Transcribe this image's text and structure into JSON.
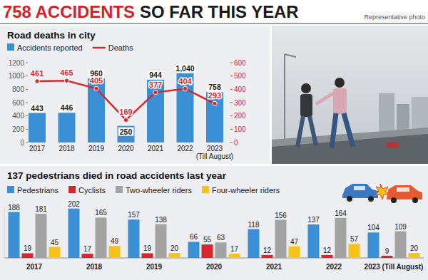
{
  "header": {
    "title": [
      "758 ACCIDENTS",
      "SO FAR THIS YEAR"
    ],
    "photo_credit": "Representative photo"
  },
  "chart_data": [
    {
      "type": "bar",
      "title": "Road deaths in city",
      "categories": [
        "2017",
        "2018",
        "2019",
        "2020",
        "2021",
        "2022",
        "2023 (Till August)"
      ],
      "series": [
        {
          "name": "Accidents reported",
          "type": "bar",
          "color": "#3b8fd4",
          "values": [
            443,
            446,
            960,
            250,
            944,
            1040,
            758
          ],
          "value_labels": [
            "443",
            "446",
            "960",
            "250",
            "944",
            "1,040",
            "758"
          ]
        },
        {
          "name": "Deaths",
          "type": "line",
          "axis": "y2",
          "color": "#d7282f",
          "marker": "circle",
          "values": [
            461,
            465,
            405,
            169,
            377,
            404,
            293
          ]
        }
      ],
      "ylim": [
        0,
        1200
      ],
      "yticks": [
        0,
        200,
        400,
        600,
        800,
        1000,
        1200
      ],
      "y2lim": [
        0,
        600
      ],
      "y2ticks": [
        0,
        100,
        200,
        300,
        400,
        500,
        600
      ],
      "grid": false,
      "data_labels": true,
      "legend": "top-left"
    },
    {
      "type": "bar",
      "title": "137 pedestrians died in road accidents last year",
      "categories": [
        "2017",
        "2018",
        "2019",
        "2020",
        "2021",
        "2022",
        "2023 (Till August)"
      ],
      "series": [
        {
          "name": "Pedestrians",
          "color": "#3b8fd4",
          "values": [
            188,
            202,
            157,
            66,
            118,
            137,
            104
          ]
        },
        {
          "name": "Cyclists",
          "color": "#d7282f",
          "values": [
            19,
            17,
            19,
            55,
            12,
            12,
            9
          ]
        },
        {
          "name": "Two-wheeler riders",
          "color": "#a3a3a3",
          "values": [
            181,
            165,
            138,
            63,
            156,
            164,
            109
          ]
        },
        {
          "name": "Four-wheeler riders",
          "color": "#f6c21b",
          "values": [
            45,
            49,
            20,
            17,
            47,
            57,
            20
          ]
        }
      ],
      "ylim": [
        0,
        210
      ],
      "tick_labels": "x",
      "grid": false,
      "data_labels": true,
      "legend": "top-left"
    }
  ]
}
